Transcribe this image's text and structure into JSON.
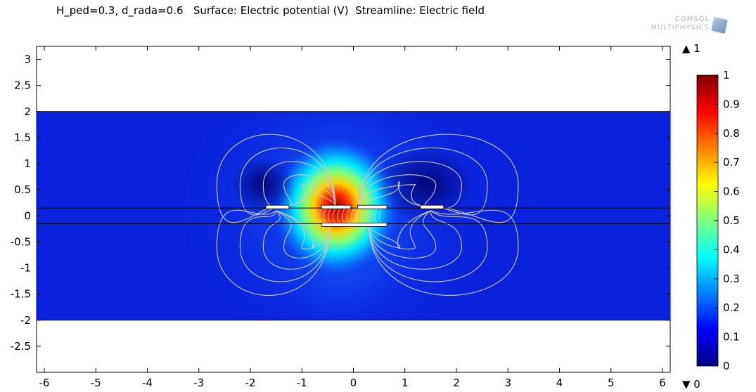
{
  "title": "H_ped=0.3, d_rada=0.6   Surface: Electric potential (V)  Streamline: Electric field",
  "logo": {
    "line1": "COMSOL",
    "line2": "MULTIPHYSICS",
    "icon": "comsol-cube-icon"
  },
  "colorbar": {
    "max_marker": "▲ 1",
    "min_marker": "▼ 0",
    "ticks": [
      "1",
      "0.9",
      "0.8",
      "0.7",
      "0.6",
      "0.5",
      "0.4",
      "0.3",
      "0.2",
      "0.1",
      "0"
    ],
    "colormap": "rainbow (dark blue to dark red)"
  },
  "chart_data": {
    "type": "heatmap",
    "title": "H_ped=0.3, d_rada=0.6   Surface: Electric potential (V)  Streamline: Electric field",
    "xlim": [
      -6.15,
      6.15
    ],
    "ylim": [
      -3.0,
      3.25
    ],
    "xticks": [
      "-6",
      "-5",
      "-4",
      "-3",
      "-2",
      "-1",
      "0",
      "1",
      "2",
      "3",
      "4",
      "5",
      "6"
    ],
    "yticks": [
      "3",
      "2.5",
      "2",
      "1.5",
      "1",
      "0.5",
      "0",
      "-0.5",
      "-1",
      "-1.5",
      "-2",
      "-2.5"
    ],
    "domain": {
      "x": [
        -6.15,
        6.15
      ],
      "y": [
        -2,
        2
      ]
    },
    "layer_lines_y": [
      0.15,
      -0.15
    ],
    "electrodes": [
      {
        "x": [
          -1.7,
          -1.25
        ],
        "y": 0.17,
        "potential": 0
      },
      {
        "x": [
          -0.62,
          -0.05
        ],
        "y": 0.17,
        "potential": 1
      },
      {
        "x": [
          0.08,
          0.65
        ],
        "y": 0.17,
        "potential": 0
      },
      {
        "x": [
          1.3,
          1.75
        ],
        "y": 0.17,
        "potential": 0
      },
      {
        "x": [
          -0.62,
          0.65
        ],
        "y": -0.17,
        "potential": 0.15
      }
    ],
    "value_range": [
      0,
      1
    ],
    "grid": false
  }
}
